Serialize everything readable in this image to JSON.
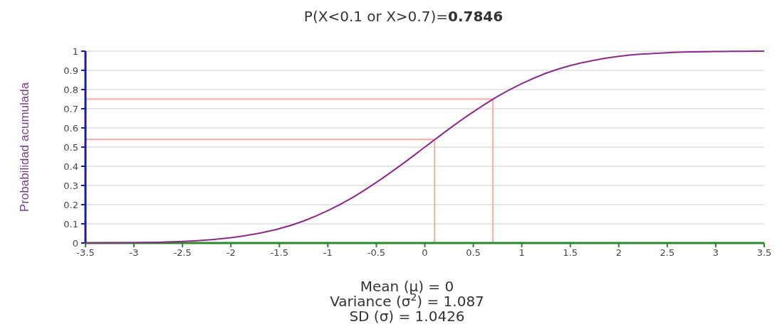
{
  "chart_data": {
    "type": "line",
    "title": "P(X<0.1 or X>0.7)=0.7846",
    "ylabel": "Probabilidad acumulada",
    "annotations": [
      "Mean (μ) = 0",
      "Variance (σ$^{2}$) = 1.087",
      "SD (σ) = 1.0426"
    ],
    "x": [
      -3.5,
      -3.25,
      -3,
      -2.75,
      -2.5,
      -2.25,
      -2,
      -1.75,
      -1.5,
      -1.25,
      -1,
      -0.75,
      -0.5,
      -0.25,
      0,
      0.1,
      0.25,
      0.5,
      0.7,
      0.75,
      1,
      1.25,
      1.5,
      1.75,
      2,
      2.25,
      2.5,
      2.75,
      3,
      3.25,
      3.5
    ],
    "series": [
      {
        "color": "#8b2a8b",
        "values": [
          0.0,
          0.001,
          0.002,
          0.004,
          0.008,
          0.016,
          0.028,
          0.047,
          0.075,
          0.115,
          0.169,
          0.236,
          0.316,
          0.405,
          0.5,
          0.538,
          0.595,
          0.684,
          0.749,
          0.764,
          0.831,
          0.885,
          0.925,
          0.953,
          0.973,
          0.985,
          0.992,
          0.996,
          0.998,
          0.999,
          1.0
        ]
      }
    ],
    "xlim": [
      -3.5,
      3.5
    ],
    "xticks": [
      -3.5,
      -3,
      -2.5,
      -2,
      -1.5,
      -1,
      -0.5,
      0,
      0.5,
      1,
      1.5,
      2,
      2.5,
      3,
      3.5
    ],
    "ylim": [
      0,
      1
    ],
    "yticks": [
      0,
      0.1,
      0.2,
      0.3,
      0.4,
      0.5,
      0.6,
      0.7,
      0.8,
      0.9,
      1
    ],
    "ref_lines": [
      {
        "axis": "x",
        "value": 0.1,
        "color": "#ffaaa0"
      },
      {
        "axis": "x",
        "value": 0.7,
        "color": "#ffaaa0"
      },
      {
        "axis": "y",
        "value": 0.54,
        "color": "#ffaaa0"
      },
      {
        "axis": "y",
        "value": 0.75,
        "color": "#ffaaa0"
      }
    ],
    "grid": "y",
    "marker": "none",
    "line_style": "solid"
  }
}
